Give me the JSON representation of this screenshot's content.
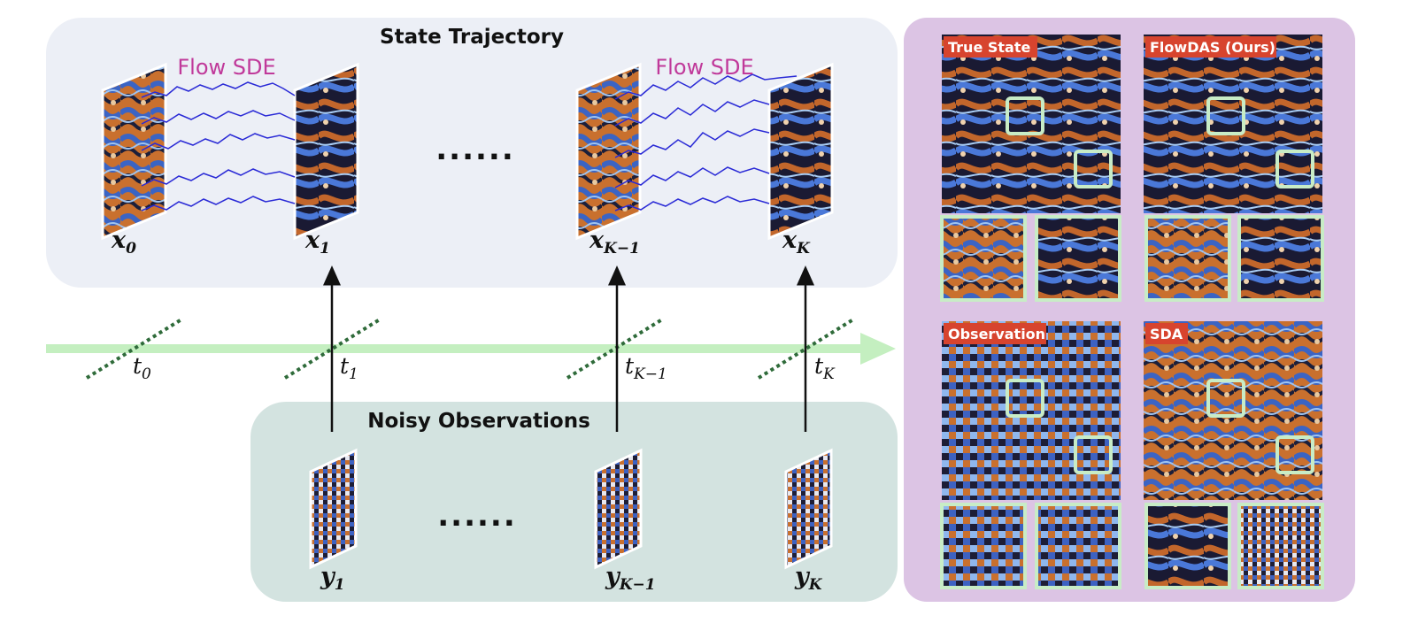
{
  "top_panel": {
    "title": "State Trajectory",
    "flow_labels": [
      "Flow SDE",
      "Flow SDE"
    ],
    "ellipsis": "......",
    "states": [
      {
        "base": "x",
        "sub": "0"
      },
      {
        "base": "x",
        "sub": "1"
      },
      {
        "base": "x",
        "sub": "K−1"
      },
      {
        "base": "x",
        "sub": "K"
      }
    ]
  },
  "timeline": {
    "times": [
      {
        "base": "t",
        "sub": "0"
      },
      {
        "base": "t",
        "sub": "1"
      },
      {
        "base": "t",
        "sub": "K−1"
      },
      {
        "base": "t",
        "sub": "K"
      }
    ]
  },
  "bottom_panel": {
    "title": "Noisy Observations",
    "ellipsis": "......",
    "observations": [
      {
        "base": "y",
        "sub": "1"
      },
      {
        "base": "y",
        "sub": "K−1"
      },
      {
        "base": "y",
        "sub": "K"
      }
    ]
  },
  "comparison": {
    "panels": [
      {
        "label": "True State"
      },
      {
        "label": "FlowDAS (Ours)"
      },
      {
        "label": "Observation"
      },
      {
        "label": "SDA"
      }
    ]
  },
  "colors": {
    "top_bg": "#eceff6",
    "bottom_bg": "#d3e3e0",
    "right_bg": "#dcc4e4",
    "timeline": "#c4efc0",
    "tick": "#2f6b3a",
    "sde_path": "#2a2ad6",
    "label_bg": "#d7442e",
    "highlight_box": "#c8ecc6"
  }
}
